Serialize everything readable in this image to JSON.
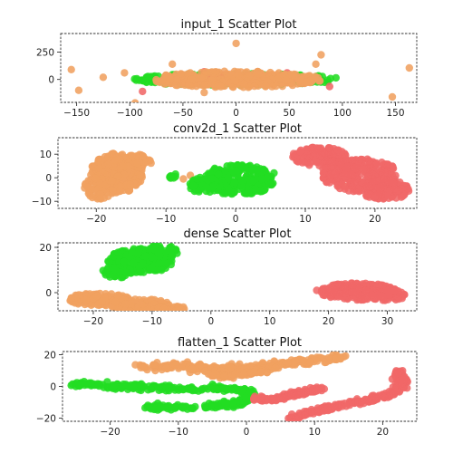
{
  "figure": {
    "background": "#ffffff"
  },
  "colors": {
    "green": "#22dd22",
    "orange": "#f0a060",
    "red": "#f06868"
  },
  "chart_data": [
    {
      "type": "scatter",
      "title": "input_1 Scatter Plot",
      "xlim": [
        -165,
        170
      ],
      "ylim": [
        -210,
        420
      ],
      "xticks": [
        -150,
        -100,
        -50,
        0,
        50,
        100,
        150
      ],
      "yticks": [
        0,
        250
      ],
      "series": [
        {
          "color_key": "green",
          "blobs": [
            {
              "cx": 0,
              "cy": 0,
              "rx": 98,
              "ry": 55,
              "n": 260
            }
          ],
          "points": [
            [
              -70,
              -20
            ],
            [
              -40,
              40
            ],
            [
              60,
              -35
            ]
          ]
        },
        {
          "color_key": "red",
          "blobs": [
            {
              "cx": 0,
              "cy": 0,
              "rx": 60,
              "ry": 45,
              "n": 120
            }
          ],
          "points": [
            [
              -88,
              -110
            ],
            [
              88,
              -65
            ],
            [
              48,
              60
            ],
            [
              -30,
              70
            ]
          ]
        },
        {
          "color_key": "orange",
          "blobs": [
            {
              "cx": 0,
              "cy": 0,
              "rx": 82,
              "ry": 75,
              "n": 340
            }
          ],
          "points": [
            [
              -155,
              90
            ],
            [
              -148,
              -100
            ],
            [
              -125,
              20
            ],
            [
              -105,
              60
            ],
            [
              -95,
              -215
            ],
            [
              -60,
              140
            ],
            [
              0,
              330
            ],
            [
              80,
              225
            ],
            [
              163,
              105
            ],
            [
              147,
              -160
            ],
            [
              75,
              140
            ],
            [
              -30,
              -120
            ]
          ]
        }
      ]
    },
    {
      "type": "scatter",
      "title": "conv2d_1 Scatter Plot",
      "xlim": [
        -25.5,
        26
      ],
      "ylim": [
        -13,
        17
      ],
      "xticks": [
        -20,
        -10,
        0,
        10,
        20
      ],
      "yticks": [
        -10,
        0,
        10
      ],
      "series": [
        {
          "color_key": "orange",
          "blobs": [
            {
              "cx": -17,
              "cy": 2,
              "rx": 3.8,
              "ry": 8.5,
              "n": 320
            },
            {
              "cx": -19.5,
              "cy": -4,
              "rx": 2.2,
              "ry": 5,
              "n": 60
            },
            {
              "cx": -14.5,
              "cy": 7,
              "rx": 2.5,
              "ry": 3,
              "n": 40
            }
          ],
          "points": [
            [
              -7.5,
              -0.5
            ],
            [
              -6.5,
              1
            ],
            [
              -4,
              -3.5
            ],
            [
              15.5,
              -3.5
            ]
          ]
        },
        {
          "color_key": "green",
          "blobs": [
            {
              "cx": 0.5,
              "cy": -1,
              "rx": 5,
              "ry": 6.5,
              "n": 280
            },
            {
              "cx": -4.5,
              "cy": -3,
              "rx": 2.2,
              "ry": 3.5,
              "n": 60
            },
            {
              "cx": -8.5,
              "cy": 0.5,
              "rx": 1.0,
              "ry": 1.2,
              "n": 8
            }
          ],
          "points": [
            [
              -3,
              4
            ],
            [
              5.5,
              2
            ]
          ]
        },
        {
          "color_key": "red",
          "blobs": [
            {
              "cx": 12,
              "cy": 9,
              "rx": 4,
              "ry": 4,
              "n": 120
            },
            {
              "cx": 18,
              "cy": 1,
              "rx": 5.5,
              "ry": 7,
              "n": 260
            },
            {
              "cx": 21.5,
              "cy": -5,
              "rx": 3.5,
              "ry": 4.5,
              "n": 120
            },
            {
              "cx": 15,
              "cy": 4,
              "rx": 3,
              "ry": 4,
              "n": 80
            }
          ],
          "points": []
        }
      ]
    },
    {
      "type": "scatter",
      "title": "dense Scatter Plot",
      "xlim": [
        -26,
        35
      ],
      "ylim": [
        -8,
        22
      ],
      "xticks": [
        -20,
        -10,
        0,
        10,
        20,
        30
      ],
      "yticks": [
        0,
        20
      ],
      "series": [
        {
          "color_key": "green",
          "blobs": [
            {
              "cx": -12,
              "cy": 14,
              "rx": 5.5,
              "ry": 5.5,
              "n": 220
            },
            {
              "cx": -9,
              "cy": 18,
              "rx": 3.5,
              "ry": 3,
              "n": 80
            },
            {
              "cx": -16,
              "cy": 9,
              "rx": 2.5,
              "ry": 2.5,
              "n": 50
            }
          ],
          "points": []
        },
        {
          "color_key": "orange",
          "blobs": [
            {
              "cx": -19,
              "cy": -3,
              "rx": 5,
              "ry": 3,
              "n": 130
            },
            {
              "cx": -12,
              "cy": -5.5,
              "rx": 5,
              "ry": 2.8,
              "n": 130
            },
            {
              "cx": -7,
              "cy": -7,
              "rx": 2.8,
              "ry": 1.3,
              "n": 50
            }
          ],
          "points": [
            [
              -5,
              -7.5
            ]
          ]
        },
        {
          "color_key": "red",
          "blobs": [
            {
              "cx": 25,
              "cy": 0.5,
              "rx": 6.5,
              "ry": 3.8,
              "n": 260
            },
            {
              "cx": 30,
              "cy": -1,
              "rx": 3,
              "ry": 2.5,
              "n": 60
            }
          ],
          "points": [
            [
              18,
              1
            ],
            [
              32.5,
              -2.5
            ]
          ]
        }
      ]
    },
    {
      "type": "scatter",
      "title": "flatten_1 Scatter Plot",
      "xlim": [
        -27,
        25
      ],
      "ylim": [
        -22,
        22
      ],
      "xticks": [
        -20,
        -10,
        0,
        10,
        20
      ],
      "yticks": [
        -20,
        0,
        20
      ],
      "series": [
        {
          "color_key": "orange",
          "curves": [
            {
              "path": [
                [
                  -15.5,
                  12.5
                ],
                [
                  -12,
                  13
                ],
                [
                  -8,
                  12
                ],
                [
                  -4,
                  10.5
                ],
                [
                  0,
                  11.5
                ],
                [
                  4,
                  13.5
                ],
                [
                  8,
                  15.5
                ],
                [
                  12,
                  17.5
                ],
                [
                  14.5,
                  18
                ]
              ],
              "spread": 1.2,
              "n": 260
            },
            {
              "path": [
                [
                  -6,
                  8.5
                ],
                [
                  -3,
                  6
                ],
                [
                  0,
                  8
                ],
                [
                  3,
                  9.5
                ]
              ],
              "spread": 0.8,
              "n": 60
            }
          ],
          "points": []
        },
        {
          "color_key": "green",
          "curves": [
            {
              "path": [
                [
                  -25.5,
                  1.5
                ],
                [
                  -20,
                  0.5
                ],
                [
                  -14,
                  -1
                ],
                [
                  -8,
                  -1.5
                ],
                [
                  -3,
                  -1
                ],
                [
                  0,
                  -3
                ],
                [
                  0.5,
                  -7
                ],
                [
                  -1,
                  -10.5
                ],
                [
                  -4,
                  -12
                ],
                [
                  -8,
                  -13.5
                ],
                [
                  -12,
                  -13
                ],
                [
                  -14.5,
                  -13.5
                ]
              ],
              "spread": 0.9,
              "n": 320
            }
          ],
          "points": []
        },
        {
          "color_key": "red",
          "curves": [
            {
              "path": [
                [
                  1,
                  -7.5
                ],
                [
                  3,
                  -8.5
                ],
                [
                  5,
                  -7
                ],
                [
                  7,
                  -5
                ],
                [
                  9,
                  -3.5
                ],
                [
                  11,
                  -1.5
                ]
              ],
              "spread": 0.7,
              "n": 120
            },
            {
              "path": [
                [
                  6.5,
                  -20.5
                ],
                [
                  9,
                  -17
                ],
                [
                  12,
                  -13.5
                ],
                [
                  15,
                  -11
                ],
                [
                  18,
                  -9
                ],
                [
                  21,
                  -5
                ],
                [
                  22.5,
                  -1
                ],
                [
                  23,
                  3
                ],
                [
                  22.5,
                  7
                ],
                [
                  22.5,
                  10
                ]
              ],
              "spread": 0.8,
              "n": 260
            }
          ],
          "points": []
        }
      ]
    }
  ]
}
